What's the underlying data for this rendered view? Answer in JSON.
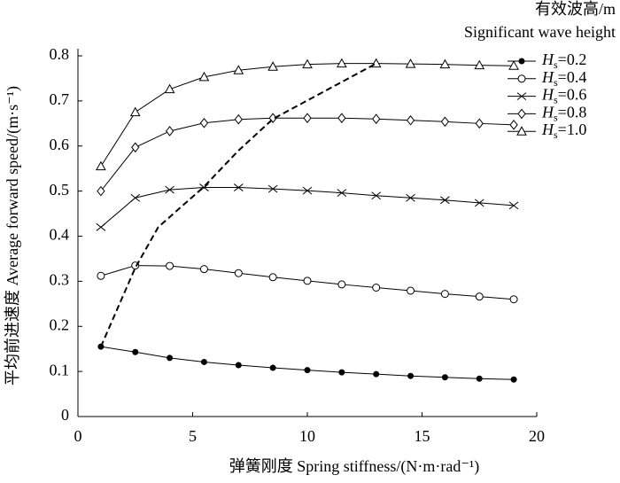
{
  "chart_data": {
    "type": "line",
    "xlabel": "弹簧刚度 Spring stiffness/(N·m·rad⁻¹)",
    "ylabel": "平均前进速度 Average forward speed/(m·s⁻¹)",
    "legend_title": [
      "有效波高/m",
      "Significant wave height"
    ],
    "legend": "upper right",
    "x": [
      1,
      2.5,
      4,
      5.5,
      7,
      8.5,
      10,
      11.5,
      13,
      14.5,
      16,
      17.5,
      19
    ],
    "series": [
      {
        "name": "Hs=0.2",
        "color": "#000000",
        "marker": "filled-circle",
        "values": [
          0.155,
          0.143,
          0.13,
          0.121,
          0.114,
          0.108,
          0.103,
          0.098,
          0.094,
          0.09,
          0.087,
          0.084,
          0.082
        ]
      },
      {
        "name": "Hs=0.4",
        "color": "#000000",
        "marker": "circle",
        "values": [
          0.312,
          0.335,
          0.334,
          0.327,
          0.318,
          0.309,
          0.301,
          0.293,
          0.286,
          0.279,
          0.272,
          0.266,
          0.26
        ]
      },
      {
        "name": "Hs=0.6",
        "color": "#000000",
        "marker": "x",
        "values": [
          0.42,
          0.485,
          0.503,
          0.508,
          0.508,
          0.505,
          0.501,
          0.496,
          0.49,
          0.485,
          0.48,
          0.474,
          0.468
        ]
      },
      {
        "name": "Hs=0.8",
        "color": "#000000",
        "marker": "diamond",
        "values": [
          0.5,
          0.597,
          0.633,
          0.651,
          0.659,
          0.662,
          0.662,
          0.662,
          0.66,
          0.657,
          0.654,
          0.65,
          0.647
        ]
      },
      {
        "name": "Hs=1.0",
        "color": "#000000",
        "marker": "triangle",
        "values": [
          0.555,
          0.675,
          0.726,
          0.753,
          0.768,
          0.776,
          0.781,
          0.783,
          0.783,
          0.782,
          0.781,
          0.779,
          0.778
        ]
      }
    ],
    "dashed_series": {
      "color": "#000000",
      "x": [
        1,
        2.5,
        3.5,
        5.5,
        7,
        8.5,
        13
      ],
      "values": [
        0.155,
        0.33,
        0.42,
        0.51,
        0.59,
        0.66,
        0.783
      ]
    },
    "xlim": [
      0,
      20
    ],
    "xticks": [
      0,
      5,
      10,
      15,
      20
    ],
    "ylim": [
      0,
      0.8
    ],
    "yticks": [
      0,
      0.1,
      0.2,
      0.3,
      0.4,
      0.5,
      0.6,
      0.7,
      0.8
    ],
    "grid": false
  }
}
